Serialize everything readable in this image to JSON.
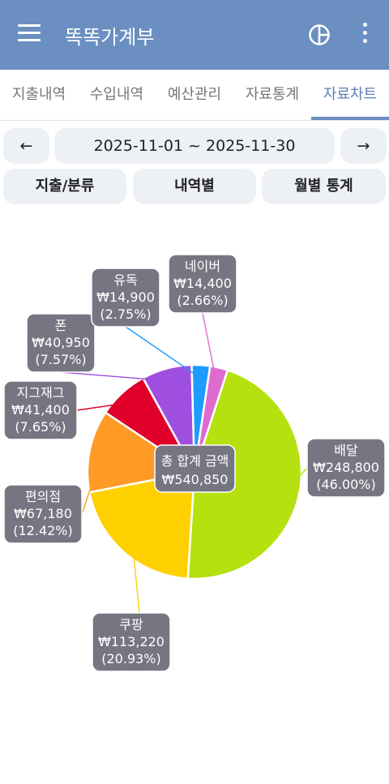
{
  "app": {
    "title": "똑똑가계부"
  },
  "tabs": [
    {
      "label": "지출내역"
    },
    {
      "label": "수입내역"
    },
    {
      "label": "예산관리"
    },
    {
      "label": "자료통계"
    },
    {
      "label": "자료차트"
    }
  ],
  "active_tab": 4,
  "date_range": {
    "prev": "←",
    "label": "2025-11-01 ~ 2025-11-30",
    "next": "→"
  },
  "views": [
    {
      "label": "지출/분류"
    },
    {
      "label": "내역별"
    },
    {
      "label": "월별 통계"
    }
  ],
  "colors": {
    "appbar": "#6a8fc0",
    "accent": "#5b80b5",
    "callout": "#767683"
  },
  "chart_data": {
    "type": "pie",
    "center_label": "총 합계 금액",
    "total": "₩540,850",
    "slices": [
      {
        "name": "배달",
        "value": 248800,
        "amount": "₩248,800",
        "percent": "(46.00%)",
        "color": "#b5e10f"
      },
      {
        "name": "쿠팡",
        "value": 113220,
        "amount": "₩113,220",
        "percent": "(20.93%)",
        "color": "#ffd000"
      },
      {
        "name": "편의점",
        "value": 67180,
        "amount": "₩67,180",
        "percent": "(12.42%)",
        "color": "#ff9a25"
      },
      {
        "name": "지그재그",
        "value": 41400,
        "amount": "₩41,400",
        "percent": "(7.65%)",
        "color": "#e0002a"
      },
      {
        "name": "폰",
        "value": 40950,
        "amount": "₩40,950",
        "percent": "(7.57%)",
        "color": "#9f4fe0"
      },
      {
        "name": "유독",
        "value": 14900,
        "amount": "₩14,900",
        "percent": "(2.75%)",
        "color": "#1e9bff"
      },
      {
        "name": "네이버",
        "value": 14400,
        "amount": "₩14,400",
        "percent": "(2.66%)",
        "color": "#de6bd0"
      }
    ]
  }
}
